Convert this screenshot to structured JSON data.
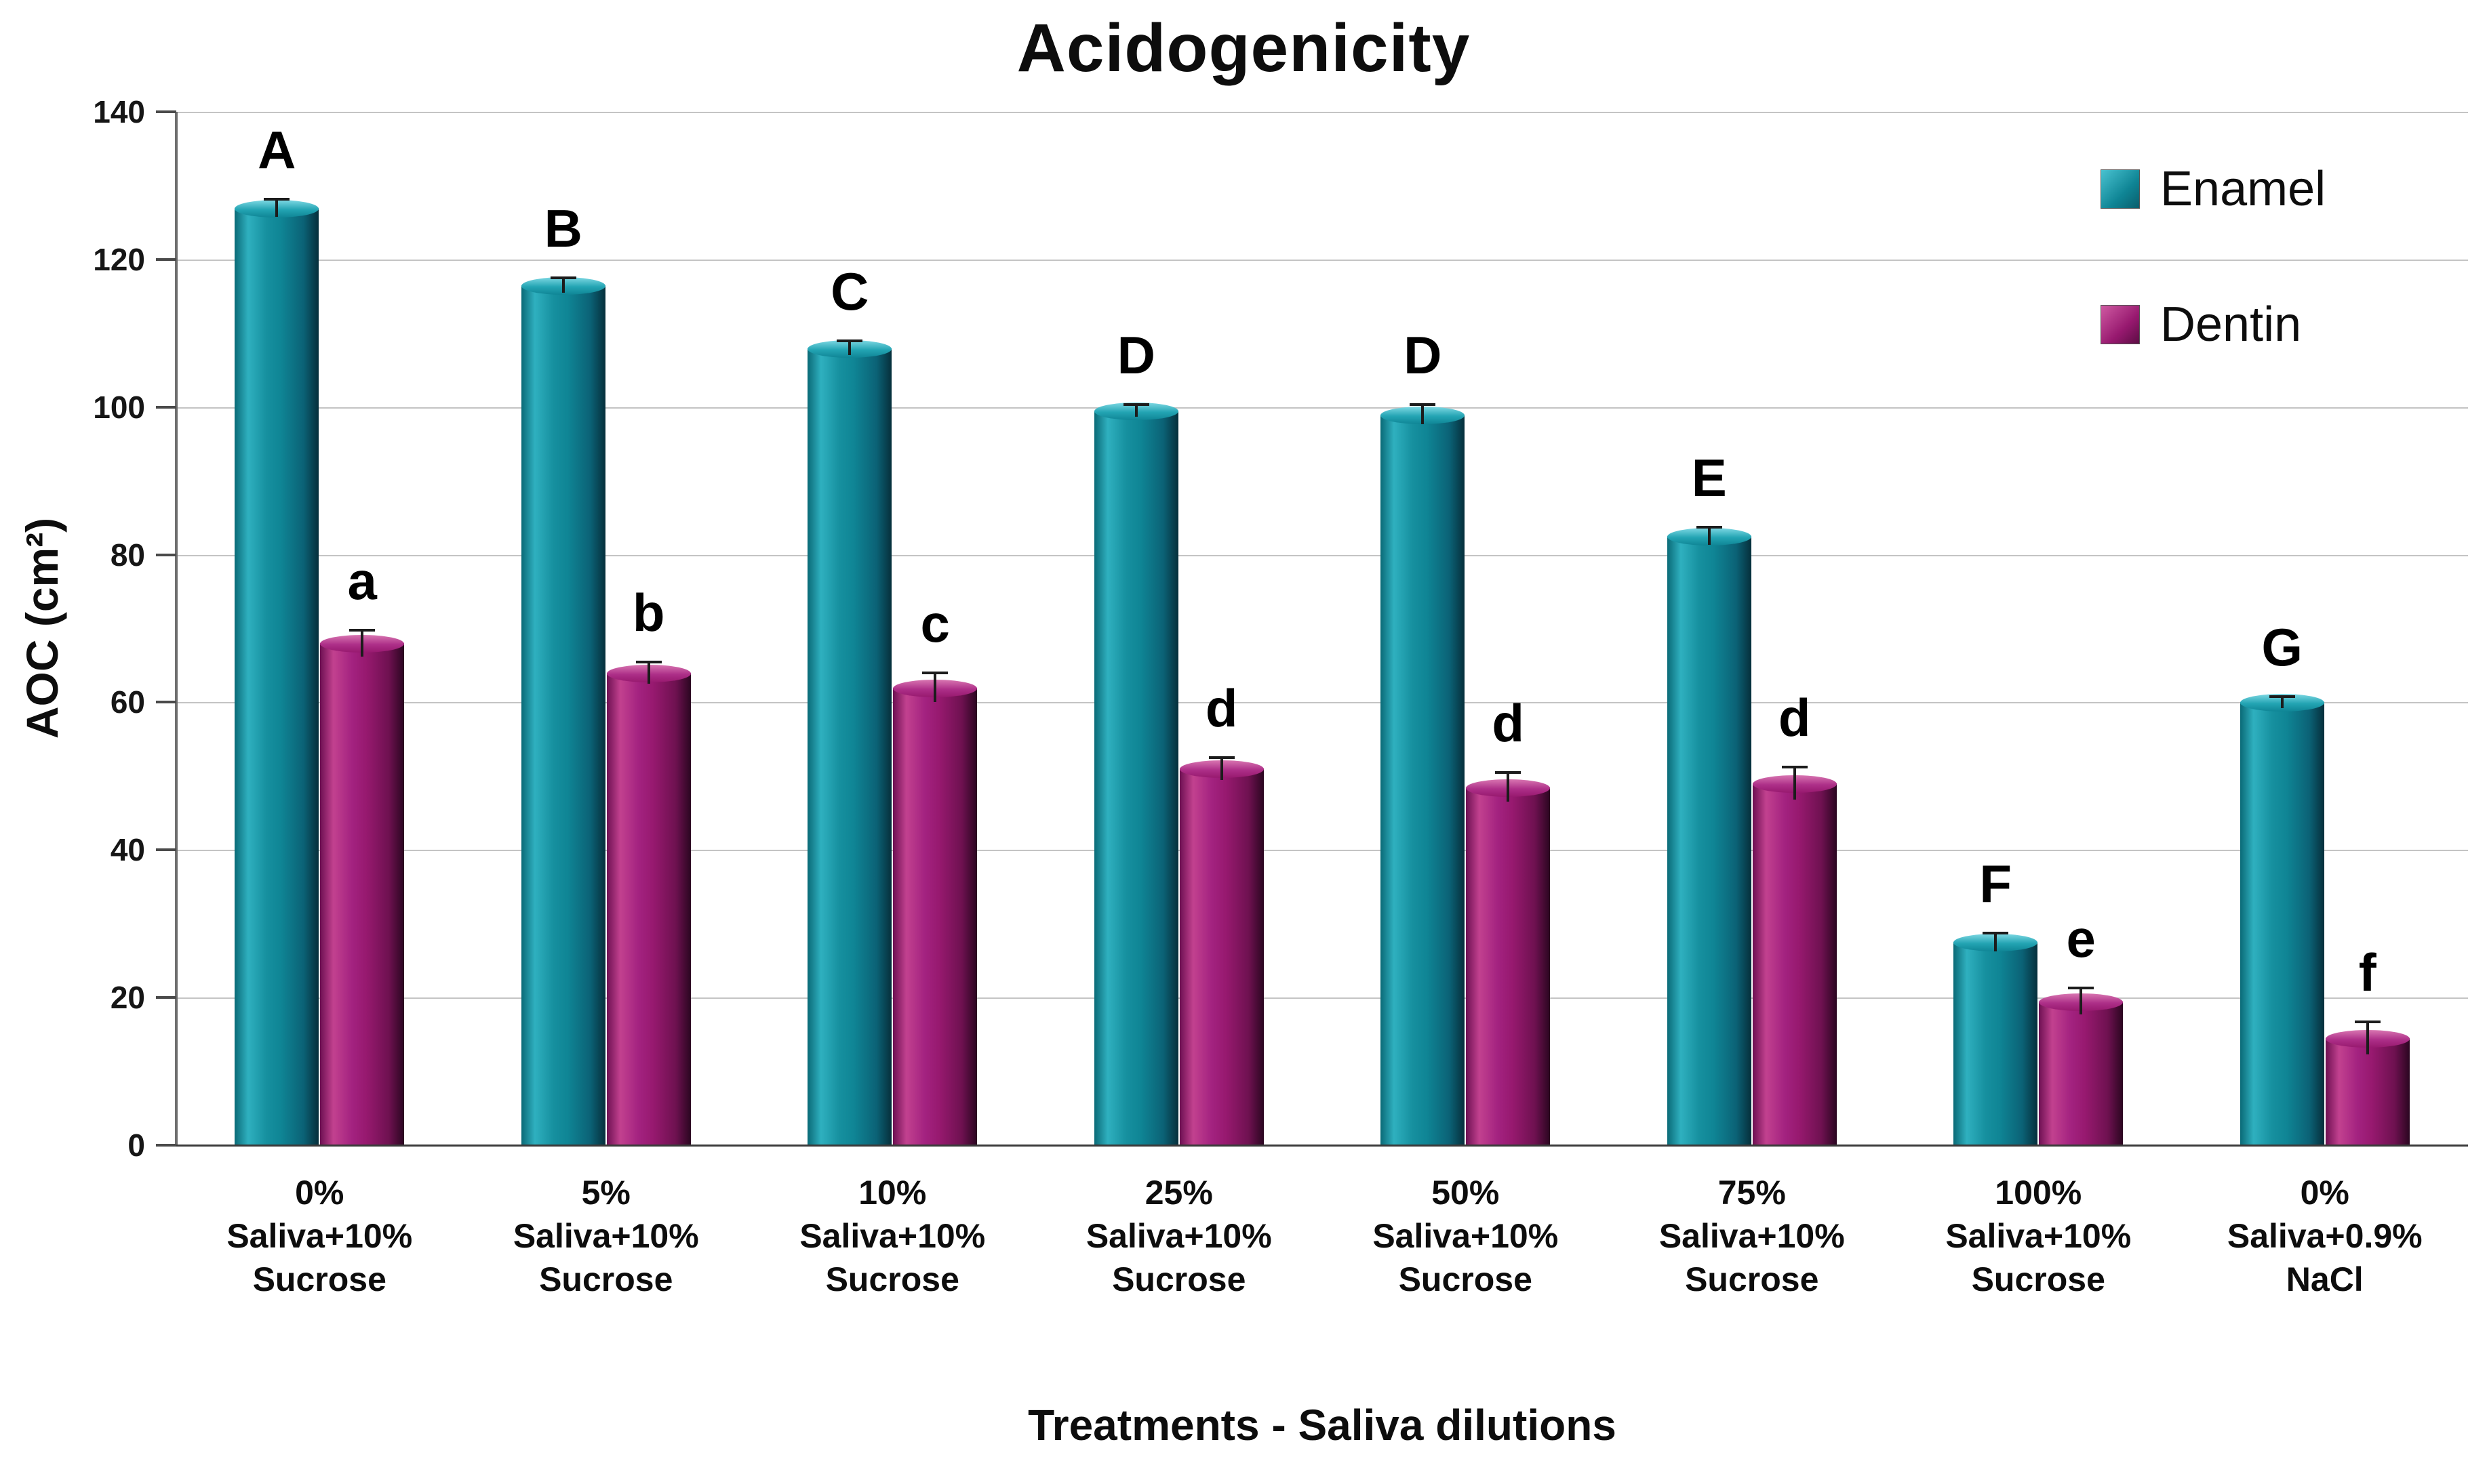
{
  "title": "Acidogenicity",
  "legend": {
    "items": [
      "Enamel",
      "Dentin"
    ]
  },
  "chart_data": {
    "type": "bar",
    "title": "Acidogenicity",
    "xlabel": "Treatments - Saliva dilutions",
    "ylabel": "AOC (cm²)",
    "ylim": [
      0,
      140
    ],
    "ytick_interval": 20,
    "grid": true,
    "legend_position": "top-right",
    "categories": [
      {
        "lines": [
          "0%",
          "Saliva+10%",
          "Sucrose"
        ]
      },
      {
        "lines": [
          "5%",
          "Saliva+10%",
          "Sucrose"
        ]
      },
      {
        "lines": [
          "10%",
          "Saliva+10%",
          "Sucrose"
        ]
      },
      {
        "lines": [
          "25%",
          "Saliva+10%",
          "Sucrose"
        ]
      },
      {
        "lines": [
          "50%",
          "Saliva+10%",
          "Sucrose"
        ]
      },
      {
        "lines": [
          "75%",
          "Saliva+10%",
          "Sucrose"
        ]
      },
      {
        "lines": [
          "100%",
          "Saliva+10%",
          "Sucrose"
        ]
      },
      {
        "lines": [
          "0%",
          "Saliva+0.9%",
          "NaCl"
        ]
      }
    ],
    "series": [
      {
        "name": "Enamel",
        "color": "#0f8595",
        "values": [
          127,
          116.5,
          108,
          99.5,
          99,
          82.5,
          27.5,
          60
        ],
        "letters": [
          "A",
          "B",
          "C",
          "D",
          "D",
          "E",
          "F",
          "G"
        ],
        "errors": [
          1.2,
          1.0,
          1.0,
          0.8,
          1.3,
          1.2,
          1.2,
          0.8
        ]
      },
      {
        "name": "Dentin",
        "color": "#97196f",
        "values": [
          68,
          64,
          62,
          51,
          48.5,
          49,
          19.5,
          14.5
        ],
        "letters": [
          "a",
          "b",
          "c",
          "d",
          "d",
          "d",
          "e",
          "f"
        ],
        "errors": [
          1.8,
          1.5,
          2.0,
          1.5,
          2.0,
          2.2,
          1.8,
          2.2
        ]
      }
    ]
  }
}
